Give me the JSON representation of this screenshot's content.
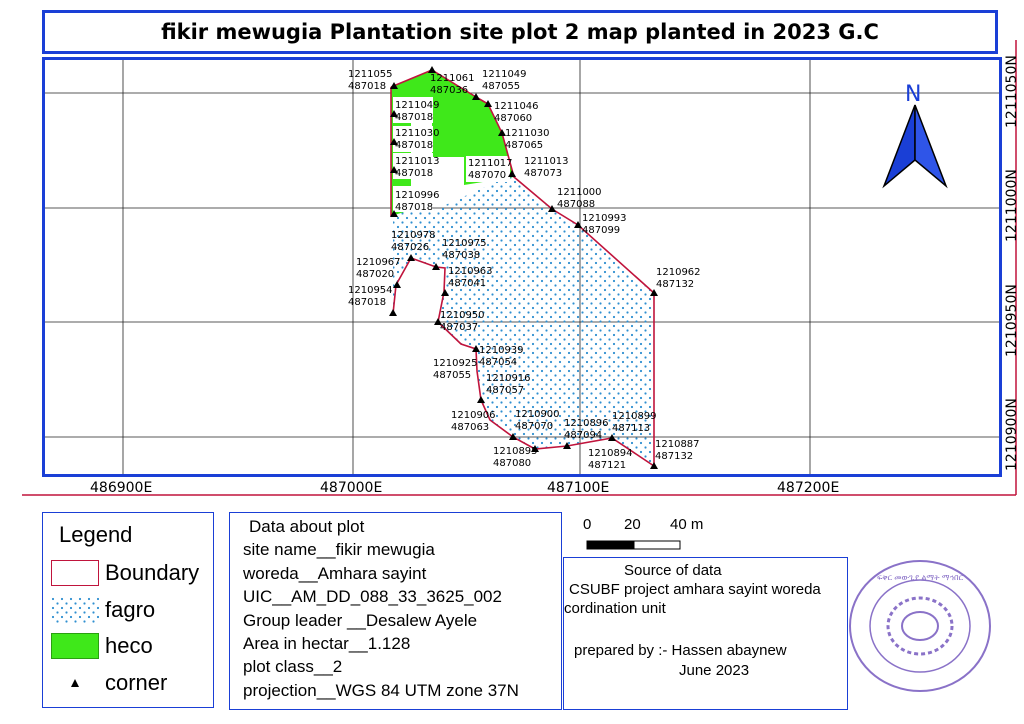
{
  "title": "fikir mewugia Plantation site plot 2 map planted in 2023 G.C",
  "grid": {
    "x_labels": [
      "486900E",
      "487000E",
      "487100E",
      "487200E"
    ],
    "y_labels": [
      "1211050N",
      "1211000N",
      "1210950N",
      "1210900N"
    ]
  },
  "north_arrow_label": "N",
  "corners": [
    {
      "n": "1211055",
      "e": "487018"
    },
    {
      "n": "1211061",
      "e": "487036"
    },
    {
      "n": "1211049",
      "e": "487055"
    },
    {
      "n": "1211049",
      "e": "487018"
    },
    {
      "n": "1211046",
      "e": "487060"
    },
    {
      "n": "1211030",
      "e": "487018"
    },
    {
      "n": "1211030",
      "e": "487065"
    },
    {
      "n": "1211013",
      "e": "487018"
    },
    {
      "n": "1211017",
      "e": "487070"
    },
    {
      "n": "1211013",
      "e": "487073"
    },
    {
      "n": "1211000",
      "e": "487088"
    },
    {
      "n": "1210996",
      "e": "487018"
    },
    {
      "n": "1210993",
      "e": "487099"
    },
    {
      "n": "1210978",
      "e": "487026"
    },
    {
      "n": "1210975",
      "e": "487038"
    },
    {
      "n": "1210967",
      "e": "487020"
    },
    {
      "n": "1210963",
      "e": "487041"
    },
    {
      "n": "1210962",
      "e": "487132"
    },
    {
      "n": "1210954",
      "e": "487018"
    },
    {
      "n": "1210950",
      "e": "487037"
    },
    {
      "n": "1210939",
      "e": "487054"
    },
    {
      "n": "1210925",
      "e": "487055"
    },
    {
      "n": "1210916",
      "e": "487057"
    },
    {
      "n": "1210906",
      "e": "487063"
    },
    {
      "n": "1210900",
      "e": "487070"
    },
    {
      "n": "1210899",
      "e": "487113"
    },
    {
      "n": "1210896",
      "e": "487094"
    },
    {
      "n": "1210895",
      "e": "487080"
    },
    {
      "n": "1210894",
      "e": "487121"
    },
    {
      "n": "1210887",
      "e": "487132"
    }
  ],
  "legend": {
    "title": "Legend",
    "items": [
      {
        "label": "Boundary",
        "color": "#c0143c"
      },
      {
        "label": "fagro",
        "color": "#2f8fd0"
      },
      {
        "label": "heco",
        "color": "#3fe81a"
      },
      {
        "label": "corner",
        "color": "#000000"
      }
    ]
  },
  "plot_data": {
    "heading": "Data about plot",
    "lines": [
      "site name__fikir mewugia",
      "woreda__Amhara sayint",
      "UIC__AM_DD_088_33_3625_002",
      "Group leader __Desalew Ayele",
      "Area in hectar__1.128",
      "plot class__2",
      "projection__WGS 84 UTM zone 37N"
    ]
  },
  "scale": {
    "ticks": [
      "0",
      "20",
      "40 m"
    ]
  },
  "source": {
    "heading": "Source of data",
    "line1": "CSUBF project amhara sayint woreda",
    "line2": "cordination unit",
    "prepared": "prepared by :- Hassen abaynew",
    "date": "June 2023"
  },
  "stamp": {
    "text": "ፍቅር መውጊያ ልማት ማኅበር"
  }
}
